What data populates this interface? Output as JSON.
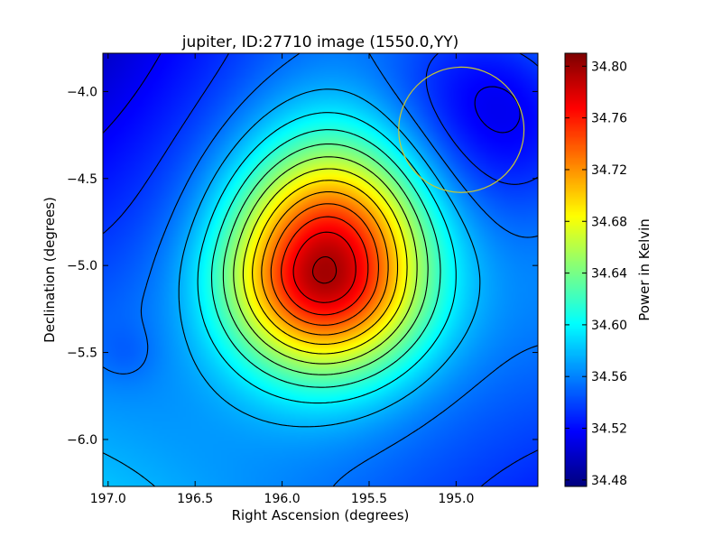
{
  "chart_data": {
    "type": "heatmap",
    "title": "jupiter, ID:27710 image (1550.0,YY)",
    "xlabel": "Right Ascension (degrees)",
    "ylabel": "Declination (degrees)",
    "colorbar_label": "Power in Kelvin",
    "xlim": [
      197.03,
      194.53
    ],
    "ylim": [
      -6.27,
      -3.78
    ],
    "x_reversed": true,
    "xticks": [
      197.0,
      196.5,
      196.0,
      195.5,
      195.0
    ],
    "xtick_labels": [
      "197.0",
      "196.5",
      "196.0",
      "195.5",
      "195.0"
    ],
    "yticks": [
      -4.0,
      -4.5,
      -5.0,
      -5.5,
      -6.0
    ],
    "ytick_labels": [
      "−4.0",
      "−4.5",
      "−5.0",
      "−5.5",
      "−6.0"
    ],
    "colorbar_range": [
      34.475,
      34.81
    ],
    "colorbar_ticks": [
      34.48,
      34.52,
      34.56,
      34.6,
      34.64,
      34.68,
      34.72,
      34.76,
      34.8
    ],
    "colorbar_tick_labels": [
      "34.48",
      "34.52",
      "34.56",
      "34.60",
      "34.64",
      "34.68",
      "34.72",
      "34.76",
      "34.80"
    ],
    "colormap": "jet",
    "peak": {
      "ra": 195.76,
      "dec": -5.03,
      "value": 34.8
    },
    "contours": "black",
    "beam_circle": {
      "ra": 194.97,
      "dec": -4.22,
      "radius_deg": 0.36,
      "color": "#c8c832"
    },
    "grid": false
  }
}
